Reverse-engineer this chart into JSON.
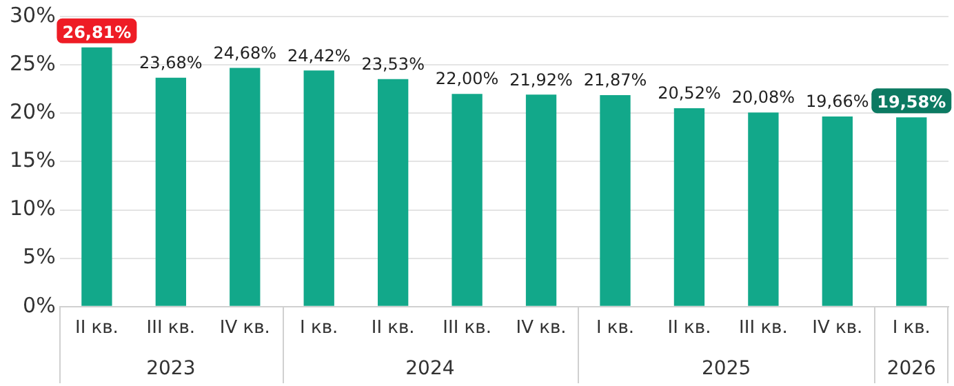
{
  "chart_data": {
    "type": "bar",
    "categories": [
      "II кв.",
      "III кв.",
      "IV кв.",
      "I кв.",
      "II кв.",
      "III кв.",
      "IV кв.",
      "I кв.",
      "II кв.",
      "III кв.",
      "IV кв.",
      "I кв."
    ],
    "values": [
      26.81,
      23.68,
      24.68,
      24.42,
      23.53,
      22.0,
      21.92,
      21.87,
      20.52,
      20.08,
      19.66,
      19.58
    ],
    "value_labels": [
      "26,81%",
      "23,68%",
      "24,68%",
      "24,42%",
      "23,53%",
      "22,00%",
      "21,92%",
      "21,87%",
      "20,52%",
      "20,08%",
      "19,66%",
      "19,58%"
    ],
    "color": "#12a88a",
    "ylim": [
      0,
      30
    ],
    "yticks": [
      {
        "value": 0,
        "label": "0%"
      },
      {
        "value": 5,
        "label": "5%"
      },
      {
        "value": 10,
        "label": "10%"
      },
      {
        "value": 15,
        "label": "15%"
      },
      {
        "value": 20,
        "label": "20%"
      },
      {
        "value": 25,
        "label": "25%"
      },
      {
        "value": 30,
        "label": "30%"
      }
    ],
    "grid": "y",
    "annotations": [
      "2023",
      "2024",
      "2025",
      "2026"
    ]
  }
}
